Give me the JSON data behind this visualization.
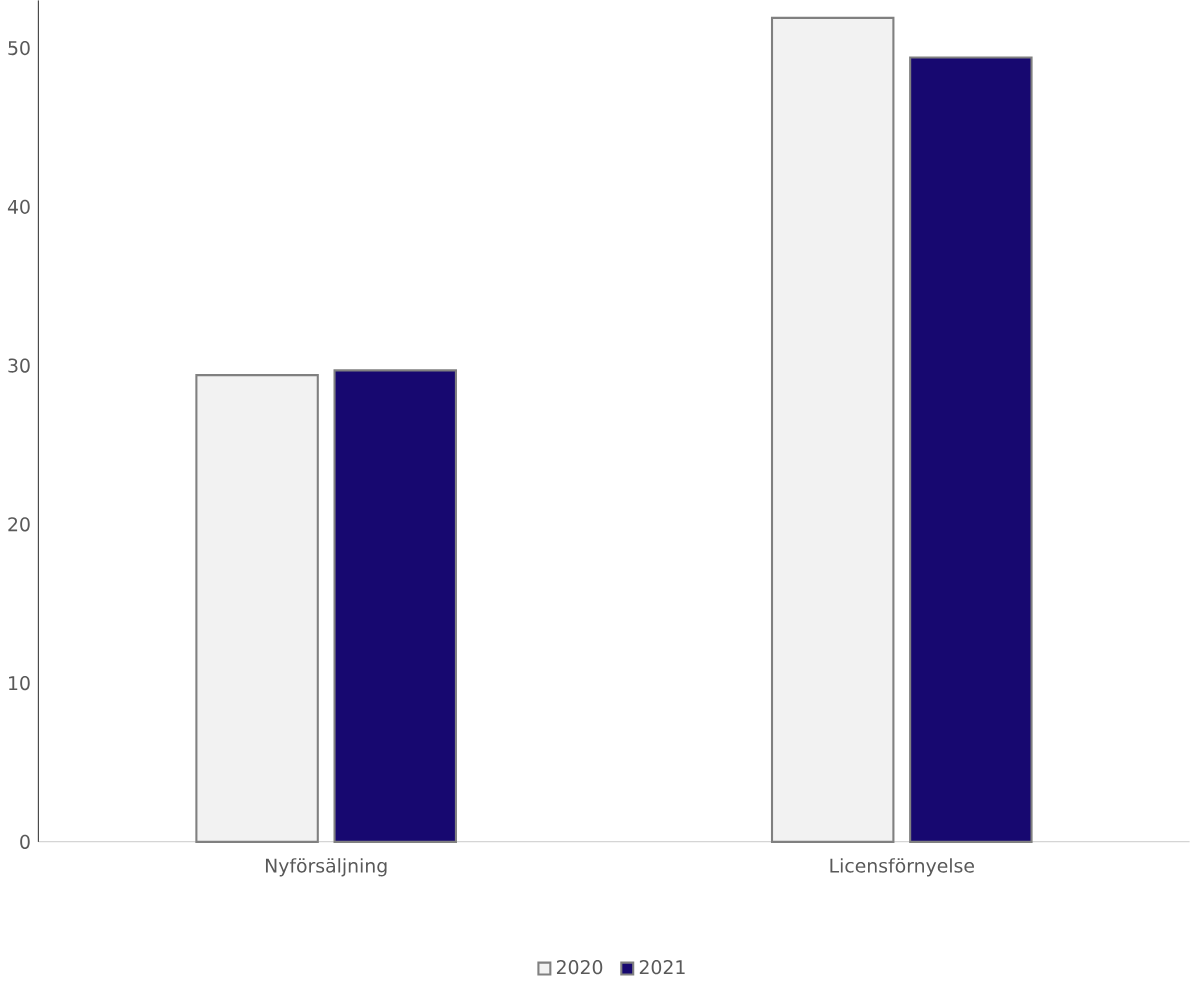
{
  "chart_data": {
    "type": "bar",
    "categories": [
      "Nyförsäljning",
      "Licensförnyelse"
    ],
    "series": [
      {
        "name": "2020",
        "color": "#f2f2f2",
        "values": [
          29.4,
          51.9
        ]
      },
      {
        "name": "2021",
        "color": "#170870",
        "values": [
          29.7,
          49.4
        ]
      }
    ],
    "ylim": [
      0,
      53
    ],
    "yticks": [
      0,
      10,
      20,
      30,
      40,
      50
    ],
    "grid": false,
    "legend": "bottom"
  }
}
